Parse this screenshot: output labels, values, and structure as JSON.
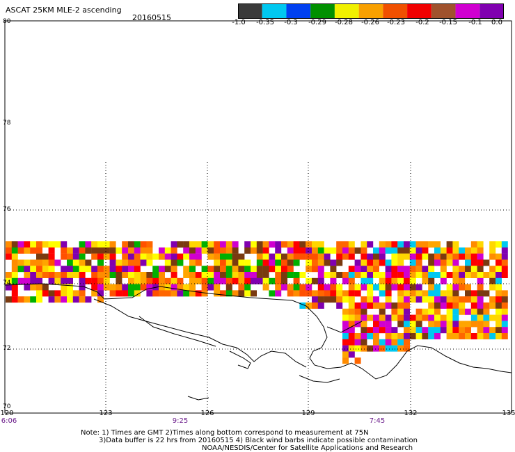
{
  "header": {
    "title": "ASCAT 25KM MLE-2 ascending",
    "date": "20160515"
  },
  "colorbar": {
    "labels": [
      "-1.0",
      "-0.35",
      "-0.3",
      "-0.29",
      "-0.28",
      "-0.26",
      "-0.23",
      "-0.2",
      "-0.15",
      "-0.1",
      "0.0"
    ],
    "colors": [
      "#3a3a3a",
      "#00c8f0",
      "#0040f0",
      "#009000",
      "#f0f000",
      "#f8a000",
      "#f05000",
      "#f00000",
      "#a0522d",
      "#d000d0",
      "#8000b0"
    ]
  },
  "axes": {
    "lat_labels": [
      "80",
      "78",
      "76",
      "74",
      "72",
      "70"
    ],
    "lon_labels": [
      "120",
      "123",
      "126",
      "129",
      "132",
      "135"
    ],
    "time_labels": [
      "6:06",
      "9:25",
      "7:45"
    ]
  },
  "notes": {
    "line1": "Note: 1) Times are GMT 2)Times along bottom correspond to measurement at 75N",
    "line2": "3)Data buffer is 22 hrs from 20160515 4) Black wind barbs indicate possible contamination",
    "line3": "NOAA/NESDIS/Center for Satellite Applications and Research"
  }
}
